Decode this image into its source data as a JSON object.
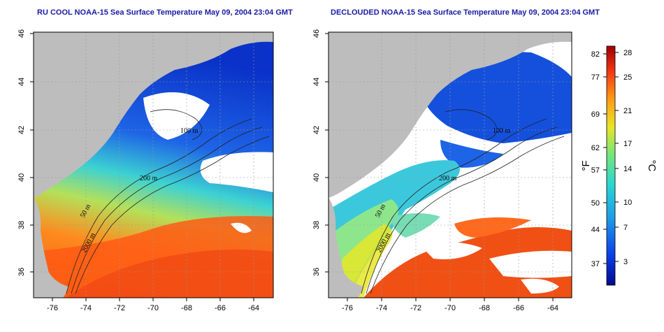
{
  "panels": [
    {
      "title": "RU COOL NOAA-15 Sea Surface Temperature May 09, 2004 23:04 GMT",
      "contour_labels": [
        "50 m",
        "200 m",
        "2000 m",
        "100 m"
      ]
    },
    {
      "title": "DECLOUDED NOAA-15 Sea Surface Temperature May 09, 2004 23:04 GMT",
      "contour_labels": [
        "50 m",
        "200 m",
        "2000 m",
        "100 m"
      ]
    }
  ],
  "axes": {
    "lon_ticks": [
      "-76",
      "-74",
      "-72",
      "-70",
      "-68",
      "-66",
      "-64"
    ],
    "lat_ticks": [
      "36",
      "38",
      "40",
      "42",
      "44",
      "46"
    ]
  },
  "colorbar": {
    "fahrenheit": [
      "82",
      "77",
      "69",
      "62",
      "57",
      "50",
      "44",
      "37"
    ],
    "celsius": [
      "28",
      "25",
      "21",
      "17",
      "14",
      "10",
      "7",
      "3"
    ],
    "unit_f": "°F",
    "unit_c": "°C"
  },
  "colors": {
    "land": "#bdbdbd",
    "cloud": "#ffffff",
    "title": "#1a1aa6"
  }
}
